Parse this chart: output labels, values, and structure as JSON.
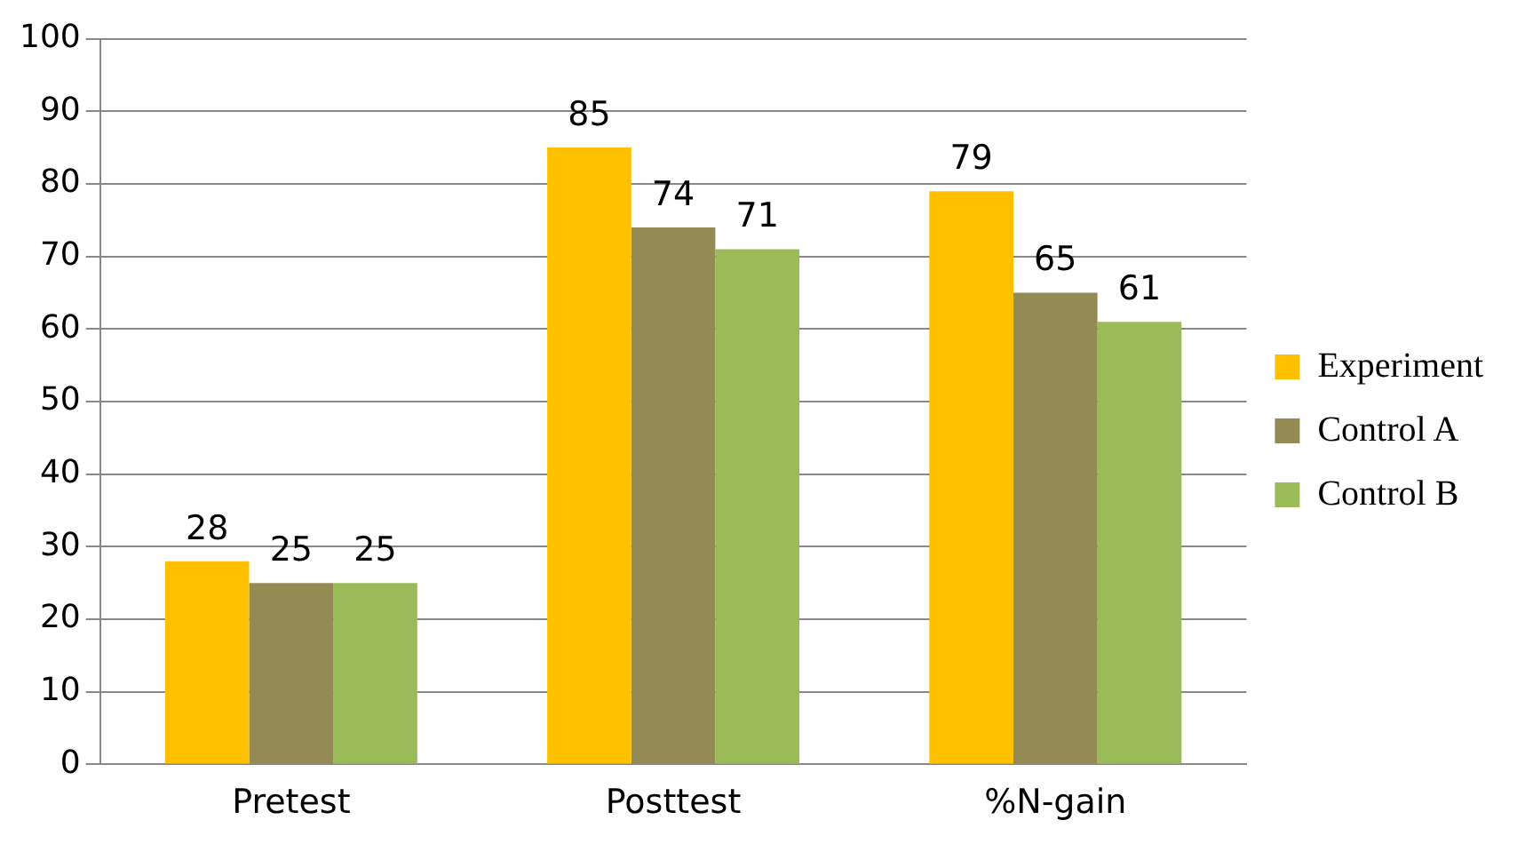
{
  "chart_data": {
    "type": "bar",
    "categories": [
      "Pretest",
      "Posttest",
      "%N-gain"
    ],
    "series": [
      {
        "name": "Experiment",
        "color": "#ffc000",
        "values": [
          28,
          85,
          79
        ]
      },
      {
        "name": "Control A",
        "color": "#948a54",
        "values": [
          25,
          74,
          65
        ]
      },
      {
        "name": "Control B",
        "color": "#9bbb59",
        "values": [
          25,
          71,
          61
        ]
      }
    ],
    "ylim": [
      0,
      100
    ],
    "yticks": [
      0,
      10,
      20,
      30,
      40,
      50,
      60,
      70,
      80,
      90,
      100
    ],
    "grid": "y",
    "legend": "right",
    "data_labels": true
  }
}
